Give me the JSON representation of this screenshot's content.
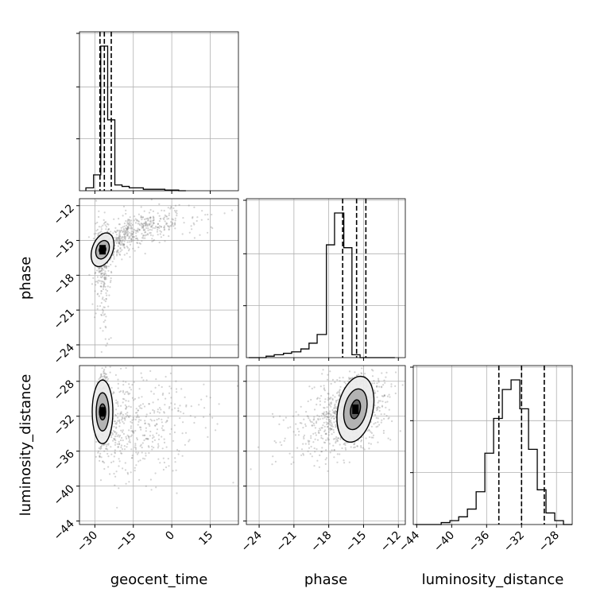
{
  "chart_data": {
    "type": "corner",
    "parameters": [
      "geocent_time",
      "phase",
      "luminosity_distance"
    ],
    "axis_labels": {
      "geocent_time": "geocent_time",
      "phase": "phase",
      "luminosity_distance": "luminosity_distance"
    },
    "ranges": {
      "geocent_time": [
        -36,
        26
      ],
      "phase": [
        -25.1,
        -11.4
      ],
      "luminosity_distance": [
        -44.4,
        -26.2
      ]
    },
    "ticks": {
      "geocent_time": [
        -30,
        -15,
        0,
        15
      ],
      "phase": [
        -24,
        -21,
        -18,
        -15,
        -12
      ],
      "luminosity_distance": [
        -44,
        -40,
        -36,
        -32,
        -28
      ]
    },
    "tick_labels": {
      "geocent_time": [
        "−30",
        "−15",
        "0",
        "15"
      ],
      "phase": [
        "−24",
        "−21",
        "−18",
        "−15",
        "−12"
      ],
      "luminosity_distance": [
        "−44",
        "−40",
        "−36",
        "−32",
        "−28"
      ]
    },
    "quantiles": {
      "geocent_time": [
        -28.0,
        -26.3,
        -23.6
      ],
      "phase": [
        -16.8,
        -15.6,
        -14.8
      ],
      "luminosity_distance": [
        -34.6,
        -32.0,
        -29.4
      ]
    },
    "histograms": {
      "geocent_time": {
        "bin_edges": [
          -33.5,
          -30.5,
          -27.7,
          -25,
          -22.2,
          -19.4,
          -16.6,
          -13.9,
          -11.1,
          -8.3,
          -5.5,
          -2.7,
          0,
          2.7,
          5.5
        ],
        "counts": [
          2,
          11,
          100,
          49,
          4,
          3,
          2,
          2,
          1,
          1,
          1,
          0.5,
          0.5,
          0
        ]
      },
      "phase": {
        "bin_edges": [
          -24.9,
          -24.1,
          -23.4,
          -22.7,
          -21.9,
          -21.2,
          -20.4,
          -19.7,
          -19.0,
          -18.2,
          -17.5,
          -16.7,
          -16.0,
          -15.3,
          -14.5,
          -13.8,
          -13.0,
          -12.3
        ],
        "counts": [
          0,
          0,
          1,
          2,
          3,
          4,
          6,
          10,
          16,
          78,
          100,
          76,
          2,
          0,
          0,
          0,
          0
        ]
      },
      "luminosity_distance": {
        "bin_edges": [
          -44.2,
          -43.2,
          -42.2,
          -41.2,
          -40.2,
          -39.2,
          -38.2,
          -37.2,
          -36.2,
          -35.2,
          -34.2,
          -33.2,
          -32.2,
          -31.2,
          -30.2,
          -29.2,
          -28.2,
          -27.2,
          -26.2
        ],
        "counts": [
          0,
          0,
          0,
          1,
          2,
          4,
          8,
          17,
          37,
          55,
          70,
          75,
          60,
          39,
          18,
          6,
          2,
          0
        ]
      }
    },
    "scatter": {
      "phase_vs_geocent_time": {
        "density_peak": {
          "geocent_time": -27,
          "phase": -15.8
        },
        "spread": "dense cluster near geocent_time=-27, with tail rising toward phase=-12.5 as geocent_time increases to 20"
      },
      "luminosity_distance_vs_geocent_time": {
        "density_peak": {
          "geocent_time": -27,
          "luminosity_distance": -31.5
        },
        "spread": "vertical cluster at geocent_time≈-27, diffuse band to geocent_time≈20"
      },
      "luminosity_distance_vs_phase": {
        "density_peak": {
          "phase": -15.7,
          "luminosity_distance": -31.2
        },
        "spread": "elliptical cluster, tail toward phase=-23"
      }
    },
    "grid": true,
    "colors": {
      "contour": "#000000",
      "points": "#808080",
      "dark_fill": "#000000",
      "mid_fill": "#7f7f7f",
      "light_fill": "#ebebeb"
    }
  }
}
